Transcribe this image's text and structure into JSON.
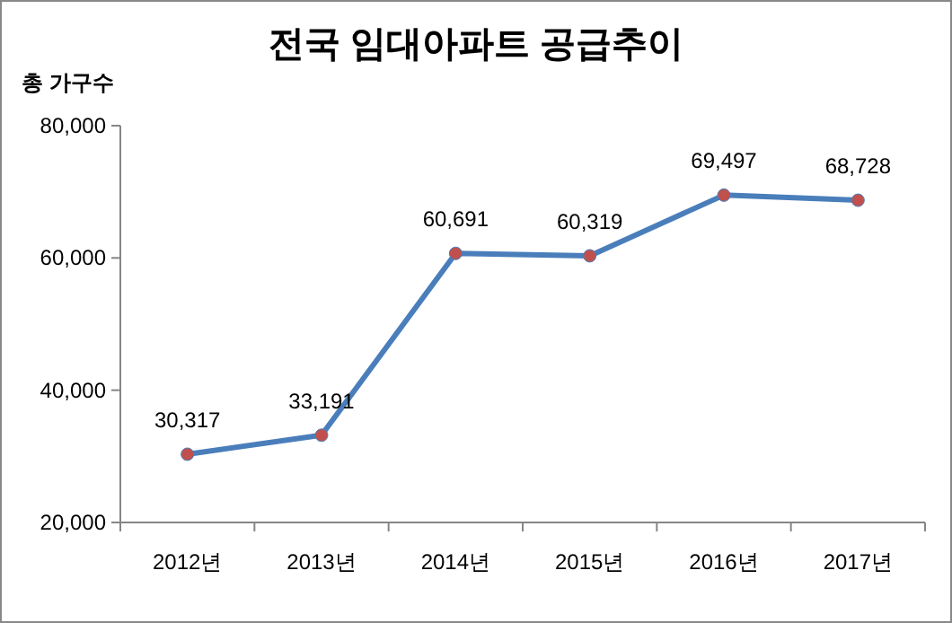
{
  "chart_data": {
    "type": "line",
    "title": "전국 임대아파트 공급추이",
    "ylabel": "총 가구수",
    "categories": [
      "2012년",
      "2013년",
      "2014년",
      "2015년",
      "2016년",
      "2017년"
    ],
    "series": [
      {
        "color": "#4a7ebb",
        "colors": [
          "#c0504d",
          "#c0504d",
          "#c0504d",
          "#c0504d",
          "#c0504d",
          "#c0504d"
        ],
        "values": [
          30317,
          33191,
          60691,
          60319,
          69497,
          68728
        ],
        "value_labels": [
          "30,317",
          "33,191",
          "60,691",
          "60,319",
          "69,497",
          "68,728"
        ]
      }
    ],
    "ylim": [
      20000,
      80000
    ],
    "yticks": [
      {
        "value": 20000,
        "label": "20,000"
      },
      {
        "value": 40000,
        "label": "40,000"
      },
      {
        "value": 60000,
        "label": "60,000"
      },
      {
        "value": 80000,
        "label": "80,000"
      }
    ],
    "marker": "circle",
    "line_style": "solid"
  }
}
